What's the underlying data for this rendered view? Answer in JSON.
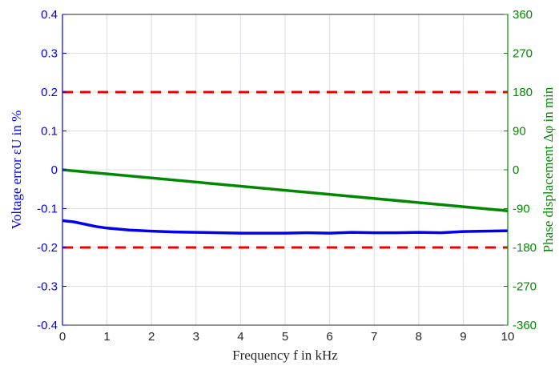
{
  "chart_data": {
    "type": "line",
    "xlabel": "Frequency f in kHz",
    "ylabel_left": "Voltage error εU in %",
    "ylabel_right": "Phase displacement Δφ in min",
    "x_ticks": [
      "0",
      "1",
      "2",
      "3",
      "4",
      "5",
      "6",
      "7",
      "8",
      "9",
      "10"
    ],
    "y_left_ticks": [
      "0.4",
      "0.3",
      "0.2",
      "0.1",
      "0",
      "-0.1",
      "-0.2",
      "-0.3",
      "-0.4"
    ],
    "y_right_ticks": [
      "360",
      "270",
      "180",
      "90",
      "0",
      "-90",
      "-180",
      "-270",
      "-360"
    ],
    "xlim": [
      0,
      10
    ],
    "ylim_left": [
      -0.4,
      0.4
    ],
    "ylim_right": [
      -360,
      360
    ],
    "grid": true,
    "series": [
      {
        "axis": "left",
        "color": "#0000ee",
        "style": "solid",
        "x": [
          0,
          0.25,
          0.5,
          0.75,
          1,
          1.5,
          2,
          2.5,
          3,
          3.5,
          4,
          4.5,
          5,
          5.5,
          6,
          6.5,
          7,
          7.5,
          8,
          8.5,
          9,
          9.5,
          10
        ],
        "y": [
          -0.131,
          -0.134,
          -0.14,
          -0.146,
          -0.15,
          -0.155,
          -0.158,
          -0.16,
          -0.161,
          -0.162,
          -0.163,
          -0.163,
          -0.163,
          -0.162,
          -0.163,
          -0.161,
          -0.162,
          -0.162,
          -0.161,
          -0.162,
          -0.159,
          -0.158,
          -0.157
        ]
      },
      {
        "axis": "right",
        "color": "#008800",
        "style": "solid",
        "x": [
          0,
          10
        ],
        "y": [
          0,
          -95
        ]
      },
      {
        "axis": "left",
        "color": "#ee0000",
        "style": "dashed",
        "x": [
          0,
          10
        ],
        "y": [
          0.2,
          0.2
        ]
      },
      {
        "axis": "left",
        "color": "#ee0000",
        "style": "dashed",
        "x": [
          0,
          10
        ],
        "y": [
          -0.2,
          -0.2
        ]
      }
    ],
    "colors": {
      "left_axis": "#0000ee",
      "right_axis": "#008800",
      "limit": "#ee0000",
      "grid": "#dcdce6"
    }
  }
}
